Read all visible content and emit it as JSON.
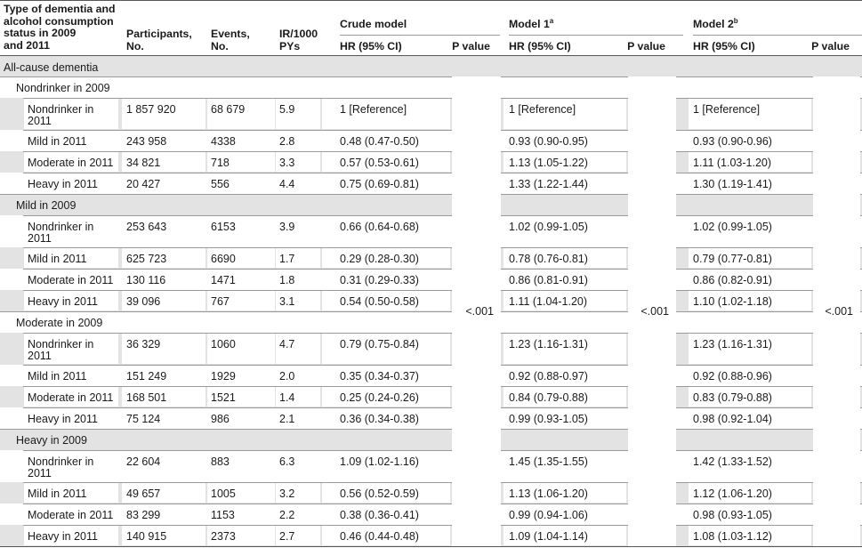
{
  "header": {
    "col_type": [
      "Type of dementia and",
      "alcohol consumption",
      "status in 2009",
      "and 2011"
    ],
    "col_participants": [
      "Participants,",
      "No."
    ],
    "col_events": [
      "Events,",
      "No."
    ],
    "col_ir": [
      "IR/1000",
      "PYs"
    ],
    "models": [
      {
        "label": "Crude model",
        "sup": ""
      },
      {
        "label": "Model 1",
        "sup": "a"
      },
      {
        "label": "Model 2",
        "sup": "b"
      }
    ],
    "hr_label": "HR (95% CI)",
    "p_label": "P value"
  },
  "section": "All-cause dementia",
  "p_values": [
    "<.001",
    "<.001",
    "<.001"
  ],
  "groups": [
    {
      "label": "Nondrinker in 2009",
      "rows": [
        {
          "label": [
            "Nondrinker in",
            "2011"
          ],
          "participants": "1 857 920",
          "events": "68 679",
          "ir": "5.9",
          "crude": "1 [Reference]",
          "m1": "1 [Reference]",
          "m2": "1 [Reference]"
        },
        {
          "label": [
            "Mild in 2011"
          ],
          "participants": "243 958",
          "events": "4338",
          "ir": "2.8",
          "crude": "0.48 (0.47-0.50)",
          "m1": "0.93 (0.90-0.95)",
          "m2": "0.93 (0.90-0.96)"
        },
        {
          "label": [
            "Moderate in 2011"
          ],
          "participants": "34 821",
          "events": "718",
          "ir": "3.3",
          "crude": "0.57 (0.53-0.61)",
          "m1": "1.13 (1.05-1.22)",
          "m2": "1.11 (1.03-1.20)"
        },
        {
          "label": [
            "Heavy in 2011"
          ],
          "participants": "20 427",
          "events": "556",
          "ir": "4.4",
          "crude": "0.75 (0.69-0.81)",
          "m1": "1.33 (1.22-1.44)",
          "m2": "1.30 (1.19-1.41)"
        }
      ]
    },
    {
      "label": "Mild in 2009",
      "rows": [
        {
          "label": [
            "Nondrinker in",
            "2011"
          ],
          "participants": "253 643",
          "events": "6153",
          "ir": "3.9",
          "crude": "0.66 (0.64-0.68)",
          "m1": "1.02 (0.99-1.05)",
          "m2": "1.02 (0.99-1.05)"
        },
        {
          "label": [
            "Mild in 2011"
          ],
          "participants": "625 723",
          "events": "6690",
          "ir": "1.7",
          "crude": "0.29 (0.28-0.30)",
          "m1": "0.78 (0.76-0.81)",
          "m2": "0.79 (0.77-0.81)"
        },
        {
          "label": [
            "Moderate in 2011"
          ],
          "participants": "130 116",
          "events": "1471",
          "ir": "1.8",
          "crude": "0.31 (0.29-0.33)",
          "m1": "0.86 (0.81-0.91)",
          "m2": "0.86 (0.82-0.91)"
        },
        {
          "label": [
            "Heavy in 2011"
          ],
          "participants": "39 096",
          "events": "767",
          "ir": "3.1",
          "crude": "0.54 (0.50-0.58)",
          "m1": "1.11 (1.04-1.20)",
          "m2": "1.10 (1.02-1.18)"
        }
      ]
    },
    {
      "label": "Moderate in 2009",
      "rows": [
        {
          "label": [
            "Nondrinker in",
            "2011"
          ],
          "participants": "36 329",
          "events": "1060",
          "ir": "4.7",
          "crude": "0.79 (0.75-0.84)",
          "m1": "1.23 (1.16-1.31)",
          "m2": "1.23 (1.16-1.31)"
        },
        {
          "label": [
            "Mild in 2011"
          ],
          "participants": "151 249",
          "events": "1929",
          "ir": "2.0",
          "crude": "0.35 (0.34-0.37)",
          "m1": "0.92 (0.88-0.97)",
          "m2": "0.92 (0.88-0.96)"
        },
        {
          "label": [
            "Moderate in 2011"
          ],
          "participants": "168 501",
          "events": "1521",
          "ir": "1.4",
          "crude": "0.25 (0.24-0.26)",
          "m1": "0.84 (0.79-0.88)",
          "m2": "0.83 (0.79-0.88)"
        },
        {
          "label": [
            "Heavy in 2011"
          ],
          "participants": "75 124",
          "events": "986",
          "ir": "2.1",
          "crude": "0.36 (0.34-0.38)",
          "m1": "0.99 (0.93-1.05)",
          "m2": "0.98 (0.92-1.04)"
        }
      ]
    },
    {
      "label": "Heavy in 2009",
      "rows": [
        {
          "label": [
            "Nondrinker in",
            "2011"
          ],
          "participants": "22 604",
          "events": "883",
          "ir": "6.3",
          "crude": "1.09 (1.02-1.16)",
          "m1": "1.45 (1.35-1.55)",
          "m2": "1.42 (1.33-1.52)"
        },
        {
          "label": [
            "Mild in 2011"
          ],
          "participants": "49 657",
          "events": "1005",
          "ir": "3.2",
          "crude": "0.56 (0.52-0.59)",
          "m1": "1.13 (1.06-1.20)",
          "m2": "1.12 (1.06-1.20)"
        },
        {
          "label": [
            "Moderate in 2011"
          ],
          "participants": "83 299",
          "events": "1153",
          "ir": "2.2",
          "crude": "0.38 (0.36-0.41)",
          "m1": "0.99 (0.94-1.06)",
          "m2": "0.98 (0.93-1.05)"
        },
        {
          "label": [
            "Heavy in 2011"
          ],
          "participants": "140 915",
          "events": "2373",
          "ir": "2.7",
          "crude": "0.46 (0.44-0.48)",
          "m1": "1.09 (1.04-1.14)",
          "m2": "1.08 (1.03-1.12)"
        }
      ]
    }
  ]
}
